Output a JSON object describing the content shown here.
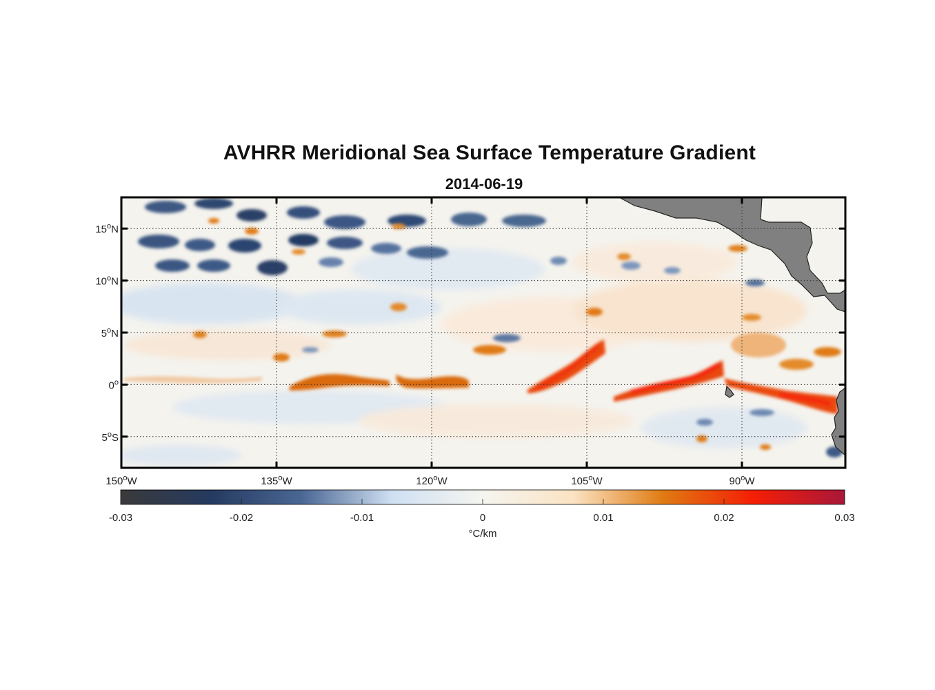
{
  "title": "AVHRR Meridional Sea Surface Temperature Gradient",
  "subtitle": "2014-06-19",
  "chart_data": {
    "type": "heatmap",
    "variable": "meridional SST gradient",
    "x_axis": {
      "range_lon": [
        -150,
        -80
      ],
      "ticks": [
        {
          "value": -150,
          "deg": "150",
          "hemi": "W"
        },
        {
          "value": -135,
          "deg": "135",
          "hemi": "W"
        },
        {
          "value": -120,
          "deg": "120",
          "hemi": "W"
        },
        {
          "value": -105,
          "deg": "105",
          "hemi": "W"
        },
        {
          "value": -90,
          "deg": "90",
          "hemi": "W"
        }
      ]
    },
    "y_axis": {
      "range_lat": [
        -8,
        18
      ],
      "ticks": [
        {
          "value": 15,
          "deg": "15",
          "hemi": "N"
        },
        {
          "value": 10,
          "deg": "10",
          "hemi": "N"
        },
        {
          "value": 5,
          "deg": "5",
          "hemi": "N"
        },
        {
          "value": 0,
          "deg": "0",
          "hemi": ""
        },
        {
          "value": -5,
          "deg": "5",
          "hemi": "S"
        }
      ]
    },
    "grid": true,
    "colorbar": {
      "range": [
        -0.03,
        0.03
      ],
      "ticks": [
        {
          "value": -0.03,
          "label": "-0.03"
        },
        {
          "value": -0.02,
          "label": "-0.02"
        },
        {
          "value": -0.01,
          "label": "-0.01"
        },
        {
          "value": 0,
          "label": "0"
        },
        {
          "value": 0.01,
          "label": "0.01"
        },
        {
          "value": 0.02,
          "label": "0.02"
        },
        {
          "value": 0.03,
          "label": "0.03"
        }
      ],
      "unit_label": "°C/km",
      "colormap": [
        "#3a3a3a",
        "#253a60",
        "#4a6794",
        "#cfe0f2",
        "#f5f5f0",
        "#fbe3c3",
        "#e07a12",
        "#f41e05",
        "#a8173a"
      ]
    },
    "features": [
      {
        "kind": "warm_front",
        "label": "equatorial front 1",
        "lon": [
          -133,
          -124
        ],
        "lat": [
          0.3,
          0.9
        ],
        "value": 0.012
      },
      {
        "kind": "warm_front",
        "label": "equatorial front 2",
        "lon": [
          -122,
          -116
        ],
        "lat": [
          0.3,
          0.5
        ],
        "value": 0.012
      },
      {
        "kind": "warm_front",
        "label": "equatorial front 3",
        "lon": [
          -111,
          -104
        ],
        "lat": [
          -0.8,
          4.2
        ],
        "value": 0.018
      },
      {
        "kind": "warm_front",
        "label": "equatorial front 4",
        "lon": [
          -102,
          -90
        ],
        "lat": [
          -1.0,
          2.0
        ],
        "value": 0.02
      },
      {
        "kind": "warm_front",
        "label": "Peru front",
        "lon": [
          -89,
          -82
        ],
        "lat": [
          -2.5,
          0.5
        ],
        "value": 0.02
      },
      {
        "kind": "cold_eddies",
        "label": "north cold band",
        "lon": [
          -150,
          -125
        ],
        "lat": [
          10,
          18
        ],
        "value": -0.025
      }
    ],
    "land": [
      "Central America",
      "South America",
      "Galapagos Islands"
    ],
    "land_color": "#808080"
  }
}
